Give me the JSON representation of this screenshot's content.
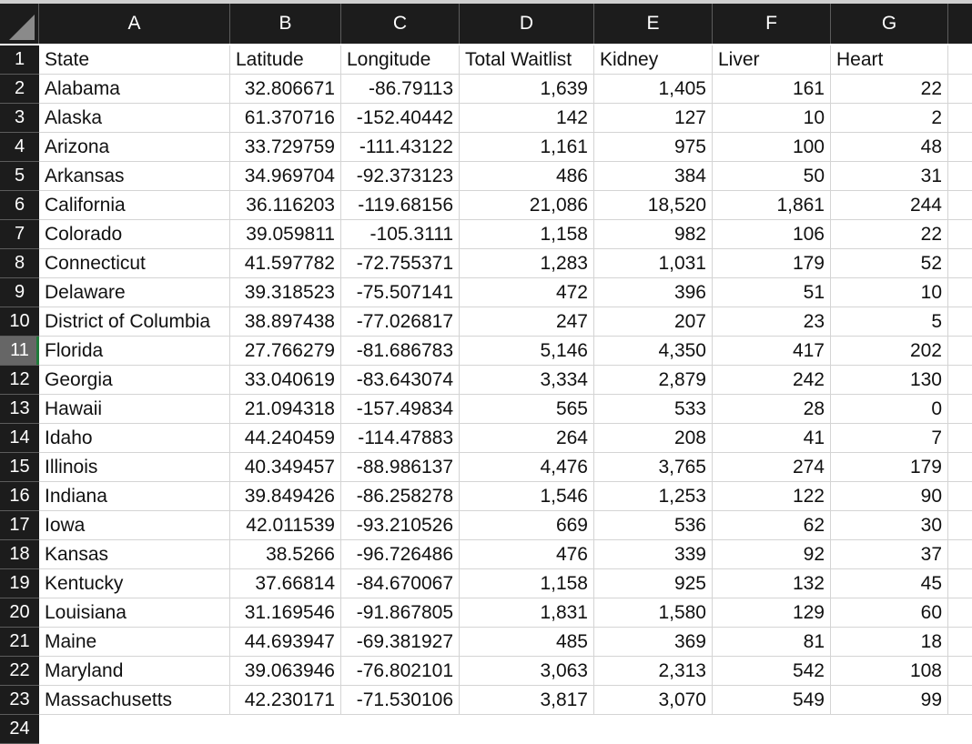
{
  "columns": [
    "A",
    "B",
    "C",
    "D",
    "E",
    "F",
    "G"
  ],
  "header_row": [
    "State",
    "Latitude",
    "Longitude",
    "Total Waitlist",
    "Kidney",
    "Liver",
    "Heart"
  ],
  "rows": [
    [
      "Alabama",
      "32.806671",
      "-86.79113",
      "1,639",
      "1,405",
      "161",
      "22"
    ],
    [
      "Alaska",
      "61.370716",
      "-152.40442",
      "142",
      "127",
      "10",
      "2"
    ],
    [
      "Arizona",
      "33.729759",
      "-111.43122",
      "1,161",
      "975",
      "100",
      "48"
    ],
    [
      "Arkansas",
      "34.969704",
      "-92.373123",
      "486",
      "384",
      "50",
      "31"
    ],
    [
      "California",
      "36.116203",
      "-119.68156",
      "21,086",
      "18,520",
      "1,861",
      "244"
    ],
    [
      "Colorado",
      "39.059811",
      "-105.3111",
      "1,158",
      "982",
      "106",
      "22"
    ],
    [
      "Connecticut",
      "41.597782",
      "-72.755371",
      "1,283",
      "1,031",
      "179",
      "52"
    ],
    [
      "Delaware",
      "39.318523",
      "-75.507141",
      "472",
      "396",
      "51",
      "10"
    ],
    [
      "District of Columbia",
      "38.897438",
      "-77.026817",
      "247",
      "207",
      "23",
      "5"
    ],
    [
      "Florida",
      "27.766279",
      "-81.686783",
      "5,146",
      "4,350",
      "417",
      "202"
    ],
    [
      "Georgia",
      "33.040619",
      "-83.643074",
      "3,334",
      "2,879",
      "242",
      "130"
    ],
    [
      "Hawaii",
      "21.094318",
      "-157.49834",
      "565",
      "533",
      "28",
      "0"
    ],
    [
      "Idaho",
      "44.240459",
      "-114.47883",
      "264",
      "208",
      "41",
      "7"
    ],
    [
      "Illinois",
      "40.349457",
      "-88.986137",
      "4,476",
      "3,765",
      "274",
      "179"
    ],
    [
      "Indiana",
      "39.849426",
      "-86.258278",
      "1,546",
      "1,253",
      "122",
      "90"
    ],
    [
      "Iowa",
      "42.011539",
      "-93.210526",
      "669",
      "536",
      "62",
      "30"
    ],
    [
      "Kansas",
      "38.5266",
      "-96.726486",
      "476",
      "339",
      "92",
      "37"
    ],
    [
      "Kentucky",
      "37.66814",
      "-84.670067",
      "1,158",
      "925",
      "132",
      "45"
    ],
    [
      "Louisiana",
      "31.169546",
      "-91.867805",
      "1,831",
      "1,580",
      "129",
      "60"
    ],
    [
      "Maine",
      "44.693947",
      "-69.381927",
      "485",
      "369",
      "81",
      "18"
    ],
    [
      "Maryland",
      "39.063946",
      "-76.802101",
      "3,063",
      "2,313",
      "542",
      "108"
    ],
    [
      "Massachusetts",
      "42.230171",
      "-71.530106",
      "3,817",
      "3,070",
      "549",
      "99"
    ]
  ],
  "partial_row_label": "24",
  "active_row": 11
}
